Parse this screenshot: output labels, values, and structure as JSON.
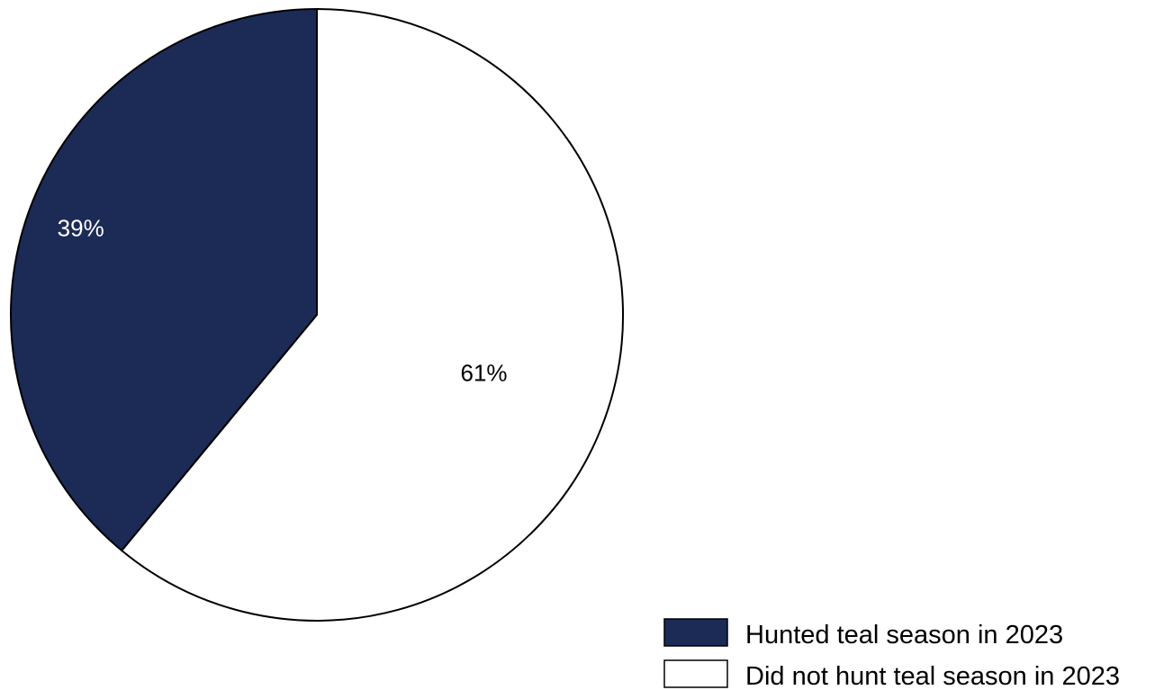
{
  "chart_data": {
    "type": "pie",
    "title": "",
    "categories": [
      "Hunted teal season in 2023",
      "Did not hunt teal season in 2023"
    ],
    "values": [
      39,
      61
    ],
    "value_labels": [
      "39%",
      "61%"
    ],
    "colors": [
      "#1c2a56",
      "#ffffff"
    ],
    "label_colors": [
      "#ffffff",
      "#000000"
    ],
    "legend_position": "bottom-right",
    "start_angle_deg": 0,
    "direction": "counterclockwise-from-top"
  }
}
